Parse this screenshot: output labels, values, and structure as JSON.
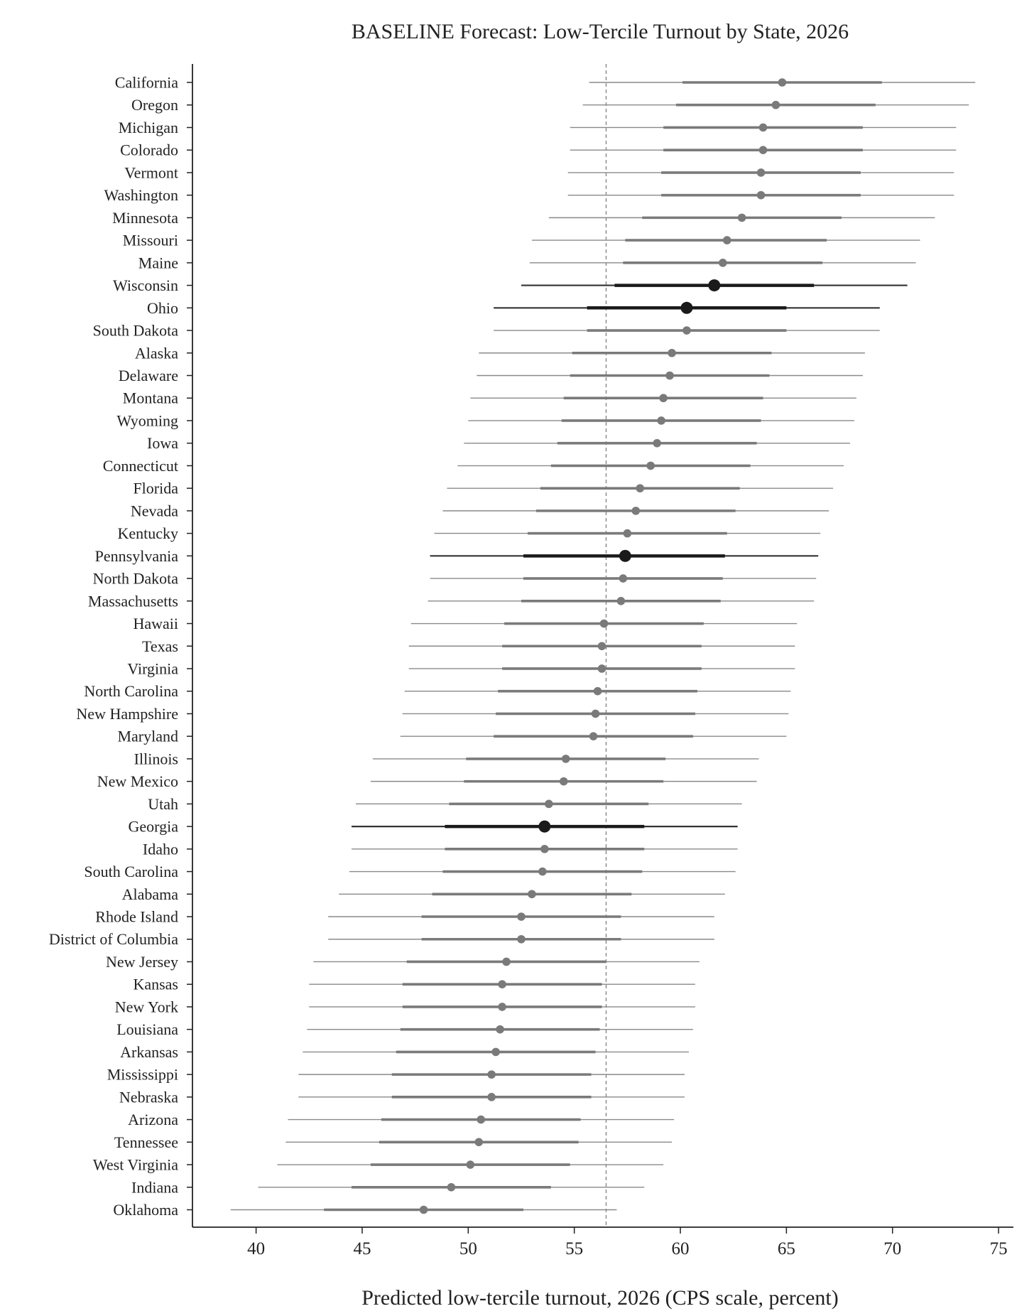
{
  "chart_data": {
    "type": "forest",
    "title": "BASELINE Forecast: Low-Tercile Turnout by State, 2026",
    "xlabel": "Predicted low-tercile turnout, 2026 (CPS scale, percent)",
    "ylabel": "",
    "xlim": [
      37,
      75.7
    ],
    "xticks": [
      40,
      45,
      50,
      55,
      60,
      65,
      70,
      75
    ],
    "reference_line": 56.5,
    "grid": false,
    "legend": "none",
    "colors": {
      "normal": "#7a7a7a",
      "highlight": "#1a1a1a",
      "reference": "#808080",
      "axis": "#222222"
    },
    "highlighted_states": [
      "Wisconsin",
      "Ohio",
      "Pennsylvania",
      "Georgia"
    ],
    "series": [
      {
        "state": "California",
        "mean": 64.8,
        "inner": [
          60.1,
          69.5
        ],
        "outer": [
          55.7,
          73.9
        ]
      },
      {
        "state": "Oregon",
        "mean": 64.5,
        "inner": [
          59.8,
          69.2
        ],
        "outer": [
          55.4,
          73.6
        ]
      },
      {
        "state": "Michigan",
        "mean": 63.9,
        "inner": [
          59.2,
          68.6
        ],
        "outer": [
          54.8,
          73.0
        ]
      },
      {
        "state": "Colorado",
        "mean": 63.9,
        "inner": [
          59.2,
          68.6
        ],
        "outer": [
          54.8,
          73.0
        ]
      },
      {
        "state": "Vermont",
        "mean": 63.8,
        "inner": [
          59.1,
          68.5
        ],
        "outer": [
          54.7,
          72.9
        ]
      },
      {
        "state": "Washington",
        "mean": 63.8,
        "inner": [
          59.1,
          68.5
        ],
        "outer": [
          54.7,
          72.9
        ]
      },
      {
        "state": "Minnesota",
        "mean": 62.9,
        "inner": [
          58.2,
          67.6
        ],
        "outer": [
          53.8,
          72.0
        ]
      },
      {
        "state": "Missouri",
        "mean": 62.2,
        "inner": [
          57.4,
          66.9
        ],
        "outer": [
          53.0,
          71.3
        ]
      },
      {
        "state": "Maine",
        "mean": 62.0,
        "inner": [
          57.3,
          66.7
        ],
        "outer": [
          52.9,
          71.1
        ]
      },
      {
        "state": "Wisconsin",
        "mean": 61.6,
        "inner": [
          56.9,
          66.3
        ],
        "outer": [
          52.5,
          70.7
        ]
      },
      {
        "state": "Ohio",
        "mean": 60.3,
        "inner": [
          55.6,
          65.0
        ],
        "outer": [
          51.2,
          69.4
        ]
      },
      {
        "state": "South Dakota",
        "mean": 60.3,
        "inner": [
          55.6,
          65.0
        ],
        "outer": [
          51.2,
          69.4
        ]
      },
      {
        "state": "Alaska",
        "mean": 59.6,
        "inner": [
          54.9,
          64.3
        ],
        "outer": [
          50.5,
          68.7
        ]
      },
      {
        "state": "Delaware",
        "mean": 59.5,
        "inner": [
          54.8,
          64.2
        ],
        "outer": [
          50.4,
          68.6
        ]
      },
      {
        "state": "Montana",
        "mean": 59.2,
        "inner": [
          54.5,
          63.9
        ],
        "outer": [
          50.1,
          68.3
        ]
      },
      {
        "state": "Wyoming",
        "mean": 59.1,
        "inner": [
          54.4,
          63.8
        ],
        "outer": [
          50.0,
          68.2
        ]
      },
      {
        "state": "Iowa",
        "mean": 58.9,
        "inner": [
          54.2,
          63.6
        ],
        "outer": [
          49.8,
          68.0
        ]
      },
      {
        "state": "Connecticut",
        "mean": 58.6,
        "inner": [
          53.9,
          63.3
        ],
        "outer": [
          49.5,
          67.7
        ]
      },
      {
        "state": "Florida",
        "mean": 58.1,
        "inner": [
          53.4,
          62.8
        ],
        "outer": [
          49.0,
          67.2
        ]
      },
      {
        "state": "Nevada",
        "mean": 57.9,
        "inner": [
          53.2,
          62.6
        ],
        "outer": [
          48.8,
          67.0
        ]
      },
      {
        "state": "Kentucky",
        "mean": 57.5,
        "inner": [
          52.8,
          62.2
        ],
        "outer": [
          48.4,
          66.6
        ]
      },
      {
        "state": "Pennsylvania",
        "mean": 57.4,
        "inner": [
          52.6,
          62.1
        ],
        "outer": [
          48.2,
          66.5
        ]
      },
      {
        "state": "North Dakota",
        "mean": 57.3,
        "inner": [
          52.6,
          62.0
        ],
        "outer": [
          48.2,
          66.4
        ]
      },
      {
        "state": "Massachusetts",
        "mean": 57.2,
        "inner": [
          52.5,
          61.9
        ],
        "outer": [
          48.1,
          66.3
        ]
      },
      {
        "state": "Hawaii",
        "mean": 56.4,
        "inner": [
          51.7,
          61.1
        ],
        "outer": [
          47.3,
          65.5
        ]
      },
      {
        "state": "Texas",
        "mean": 56.3,
        "inner": [
          51.6,
          61.0
        ],
        "outer": [
          47.2,
          65.4
        ]
      },
      {
        "state": "Virginia",
        "mean": 56.3,
        "inner": [
          51.6,
          61.0
        ],
        "outer": [
          47.2,
          65.4
        ]
      },
      {
        "state": "North Carolina",
        "mean": 56.1,
        "inner": [
          51.4,
          60.8
        ],
        "outer": [
          47.0,
          65.2
        ]
      },
      {
        "state": "New Hampshire",
        "mean": 56.0,
        "inner": [
          51.3,
          60.7
        ],
        "outer": [
          46.9,
          65.1
        ]
      },
      {
        "state": "Maryland",
        "mean": 55.9,
        "inner": [
          51.2,
          60.6
        ],
        "outer": [
          46.8,
          65.0
        ]
      },
      {
        "state": "Illinois",
        "mean": 54.6,
        "inner": [
          49.9,
          59.3
        ],
        "outer": [
          45.5,
          63.7
        ]
      },
      {
        "state": "New Mexico",
        "mean": 54.5,
        "inner": [
          49.8,
          59.2
        ],
        "outer": [
          45.4,
          63.6
        ]
      },
      {
        "state": "Utah",
        "mean": 53.8,
        "inner": [
          49.1,
          58.5
        ],
        "outer": [
          44.7,
          62.9
        ]
      },
      {
        "state": "Georgia",
        "mean": 53.6,
        "inner": [
          48.9,
          58.3
        ],
        "outer": [
          44.5,
          62.7
        ]
      },
      {
        "state": "Idaho",
        "mean": 53.6,
        "inner": [
          48.9,
          58.3
        ],
        "outer": [
          44.5,
          62.7
        ]
      },
      {
        "state": "South Carolina",
        "mean": 53.5,
        "inner": [
          48.8,
          58.2
        ],
        "outer": [
          44.4,
          62.6
        ]
      },
      {
        "state": "Alabama",
        "mean": 53.0,
        "inner": [
          48.3,
          57.7
        ],
        "outer": [
          43.9,
          62.1
        ]
      },
      {
        "state": "Rhode Island",
        "mean": 52.5,
        "inner": [
          47.8,
          57.2
        ],
        "outer": [
          43.4,
          61.6
        ]
      },
      {
        "state": "District of Columbia",
        "mean": 52.5,
        "inner": [
          47.8,
          57.2
        ],
        "outer": [
          43.4,
          61.6
        ]
      },
      {
        "state": "New Jersey",
        "mean": 51.8,
        "inner": [
          47.1,
          56.5
        ],
        "outer": [
          42.7,
          60.9
        ]
      },
      {
        "state": "Kansas",
        "mean": 51.6,
        "inner": [
          46.9,
          56.3
        ],
        "outer": [
          42.5,
          60.7
        ]
      },
      {
        "state": "New York",
        "mean": 51.6,
        "inner": [
          46.9,
          56.3
        ],
        "outer": [
          42.5,
          60.7
        ]
      },
      {
        "state": "Louisiana",
        "mean": 51.5,
        "inner": [
          46.8,
          56.2
        ],
        "outer": [
          42.4,
          60.6
        ]
      },
      {
        "state": "Arkansas",
        "mean": 51.3,
        "inner": [
          46.6,
          56.0
        ],
        "outer": [
          42.2,
          60.4
        ]
      },
      {
        "state": "Mississippi",
        "mean": 51.1,
        "inner": [
          46.4,
          55.8
        ],
        "outer": [
          42.0,
          60.2
        ]
      },
      {
        "state": "Nebraska",
        "mean": 51.1,
        "inner": [
          46.4,
          55.8
        ],
        "outer": [
          42.0,
          60.2
        ]
      },
      {
        "state": "Arizona",
        "mean": 50.6,
        "inner": [
          45.9,
          55.3
        ],
        "outer": [
          41.5,
          59.7
        ]
      },
      {
        "state": "Tennessee",
        "mean": 50.5,
        "inner": [
          45.8,
          55.2
        ],
        "outer": [
          41.4,
          59.6
        ]
      },
      {
        "state": "West Virginia",
        "mean": 50.1,
        "inner": [
          45.4,
          54.8
        ],
        "outer": [
          41.0,
          59.2
        ]
      },
      {
        "state": "Indiana",
        "mean": 49.2,
        "inner": [
          44.5,
          53.9
        ],
        "outer": [
          40.1,
          58.3
        ]
      },
      {
        "state": "Oklahoma",
        "mean": 47.9,
        "inner": [
          43.2,
          52.6
        ],
        "outer": [
          38.8,
          57.0
        ]
      }
    ]
  }
}
